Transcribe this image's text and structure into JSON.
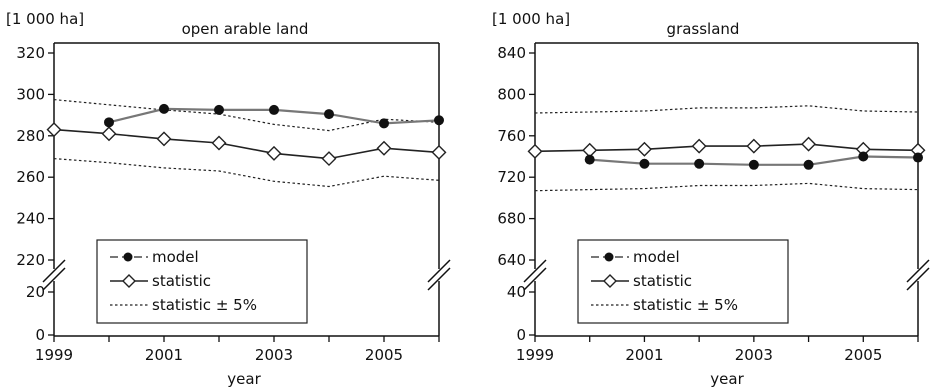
{
  "chart_data": [
    {
      "type": "line",
      "title": "open arable land",
      "unit": "[1 000 ha]",
      "xlabel": "year",
      "x": [
        1999,
        2000,
        2001,
        2002,
        2003,
        2004,
        2005,
        2006
      ],
      "xticks": [
        1999,
        2001,
        2003,
        2005
      ],
      "yticks_upper": [
        220,
        240,
        260,
        280,
        300,
        320
      ],
      "yticks_lower": [
        0,
        20
      ],
      "ylim": [
        0,
        320
      ],
      "axis_break": [
        20,
        220
      ],
      "series": [
        {
          "name": "model",
          "marker": "filled-circle",
          "values": [
            null,
            286.5,
            293,
            292.5,
            292.5,
            290.5,
            286,
            287.5
          ]
        },
        {
          "name": "statistic",
          "marker": "open-diamond",
          "values": [
            283,
            281,
            278.5,
            276.5,
            271.5,
            269,
            274,
            272
          ]
        },
        {
          "name": "statistic ± 5%",
          "style": "dotted",
          "upper": [
            297.5,
            295,
            292.5,
            290.5,
            285.5,
            282.5,
            288,
            286.5
          ],
          "lower": [
            269,
            267,
            264.5,
            263,
            258,
            255.5,
            260.5,
            258.5
          ]
        }
      ],
      "legend_position": "bottom-left"
    },
    {
      "type": "line",
      "title": "grassland",
      "unit": "[1 000 ha]",
      "xlabel": "year",
      "x": [
        1999,
        2000,
        2001,
        2002,
        2003,
        2004,
        2005,
        2006
      ],
      "xticks": [
        1999,
        2001,
        2003,
        2005
      ],
      "yticks_upper": [
        640,
        680,
        720,
        760,
        800,
        840
      ],
      "yticks_lower": [
        0,
        40
      ],
      "ylim": [
        0,
        840
      ],
      "axis_break": [
        40,
        640
      ],
      "series": [
        {
          "name": "model",
          "marker": "filled-circle",
          "values": [
            null,
            737,
            733,
            733,
            732,
            732,
            740,
            739
          ]
        },
        {
          "name": "statistic",
          "marker": "open-diamond",
          "values": [
            745,
            746,
            747,
            750,
            750,
            752,
            747,
            746
          ]
        },
        {
          "name": "statistic ± 5%",
          "style": "dotted",
          "upper": [
            782,
            783,
            784,
            787,
            787,
            789,
            784,
            783
          ],
          "lower": [
            707,
            708,
            709,
            712,
            712,
            714,
            709,
            708
          ]
        }
      ],
      "legend_position": "bottom-left"
    }
  ]
}
